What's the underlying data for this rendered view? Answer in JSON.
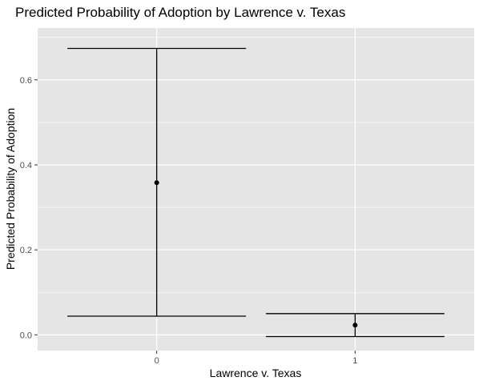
{
  "chart_data": {
    "type": "errorbar",
    "title": "Predicted Probability of Adoption by Lawrence v. Texas",
    "xlabel": "Lawrence v. Texas",
    "ylabel": "Predicted Probability of Adoption",
    "categories": [
      "0",
      "1"
    ],
    "estimates": [
      0.358,
      0.023
    ],
    "lower": [
      0.044,
      -0.004
    ],
    "upper": [
      0.674,
      0.05
    ],
    "ylim": [
      -0.037,
      0.722
    ],
    "yticks": [
      0.0,
      0.2,
      0.4,
      0.6
    ],
    "ytick_labels": [
      "0.0",
      "0.2",
      "0.4",
      "0.6"
    ],
    "grid": true,
    "colors": {
      "panel_bg": "#e5e5e5",
      "grid_major": "#ffffff",
      "marks": "#000000"
    }
  }
}
